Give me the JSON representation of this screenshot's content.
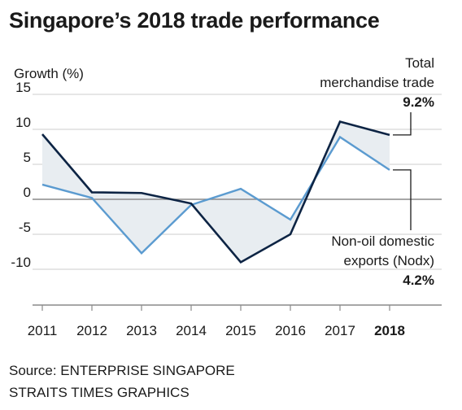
{
  "title": "Singapore’s 2018 trade performance",
  "source": "Source: ENTERPRISE SINGAPORE",
  "credit": "STRAITS TIMES GRAPHICS",
  "colors": {
    "total_line": "#0d2444",
    "nodx_line": "#5b9bd0",
    "fill": "#e8edf1",
    "grid": "#cccccc",
    "axis": "#8a8a8a",
    "text": "#1a1a1a"
  },
  "chart_data": {
    "type": "line",
    "ylabel": "Growth (%)",
    "ylim": [
      -15,
      15
    ],
    "yticks": [
      15,
      10,
      5,
      0,
      -5,
      -10
    ],
    "ytick_labels": [
      "15",
      "10",
      "5",
      "0",
      "-5",
      "-10"
    ],
    "x": [
      "2011",
      "2012",
      "2013",
      "2014",
      "2015",
      "2016",
      "2017",
      "2018"
    ],
    "bold_x": "2018",
    "shaded_between_series": true,
    "grid": "horizontal",
    "series": [
      {
        "key": "total",
        "label_lines": [
          "Total",
          "merchandise trade"
        ],
        "value_label": "9.2%",
        "values": [
          9.3,
          1.0,
          0.9,
          -0.6,
          -9.0,
          -5.0,
          11.1,
          9.2
        ]
      },
      {
        "key": "nodx",
        "label_lines": [
          "Non-oil domestic",
          "exports (Nodx)"
        ],
        "value_label": "4.2%",
        "values": [
          2.1,
          0.2,
          -7.7,
          -0.8,
          1.5,
          -2.9,
          8.9,
          4.2
        ]
      }
    ]
  }
}
